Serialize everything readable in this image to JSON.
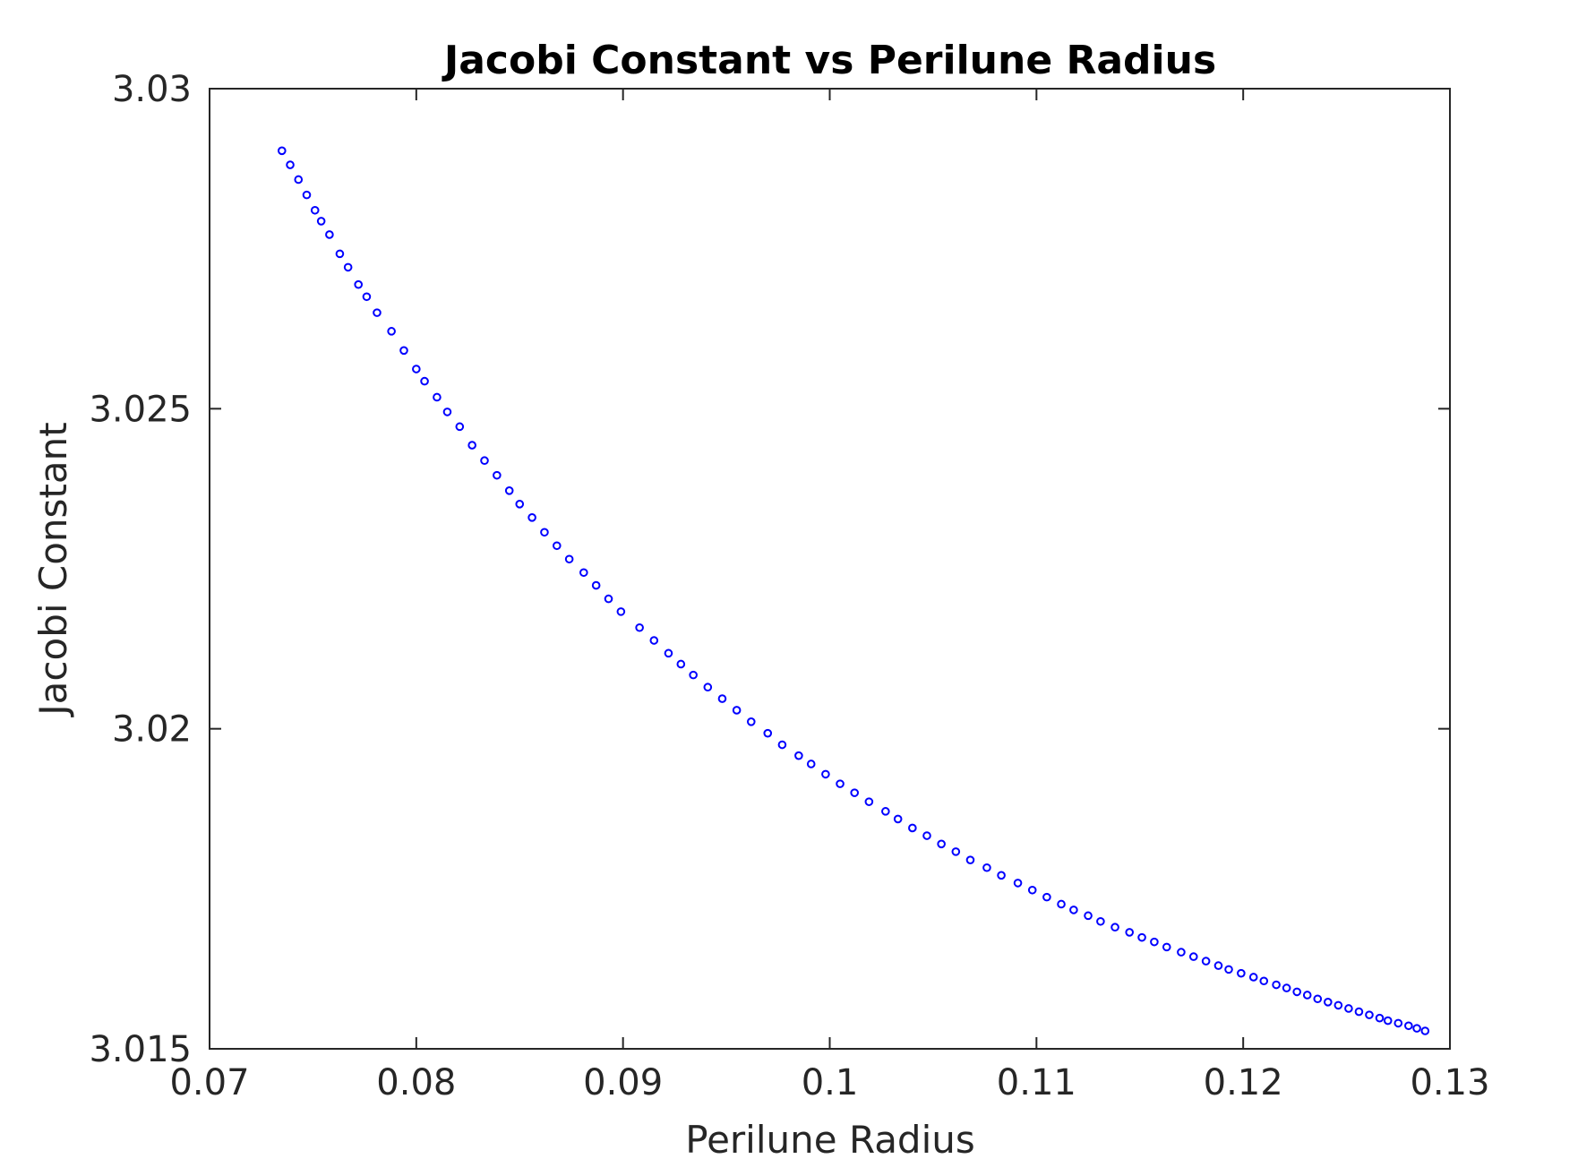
{
  "chart_data": {
    "type": "scatter",
    "title": "Jacobi Constant vs Perilune Radius",
    "xlabel": "Perilune Radius",
    "ylabel": "Jacobi Constant",
    "xlim": [
      0.07,
      0.13
    ],
    "ylim": [
      3.015,
      3.03
    ],
    "xticks": [
      0.07,
      0.08,
      0.09,
      0.1,
      0.11,
      0.12,
      0.13
    ],
    "xtick_labels": [
      "0.07",
      "0.08",
      "0.09",
      "0.1",
      "0.11",
      "0.12",
      "0.13"
    ],
    "yticks": [
      3.015,
      3.02,
      3.025,
      3.03
    ],
    "ytick_labels": [
      "3.015",
      "3.02",
      "3.025",
      "3.03"
    ],
    "grid": false,
    "marker": "circle-open",
    "marker_color": "#0000ff",
    "series": [
      {
        "x": [
          0.0735,
          0.0739,
          0.0743,
          0.0747,
          0.0751,
          0.0754,
          0.0758,
          0.0763,
          0.0767,
          0.0772,
          0.0776,
          0.0781,
          0.0788,
          0.0794,
          0.08,
          0.0804,
          0.081,
          0.0815,
          0.0821,
          0.0827,
          0.0833,
          0.0839,
          0.0845,
          0.085,
          0.0856,
          0.0862,
          0.0868,
          0.0874,
          0.0881,
          0.0887,
          0.0893,
          0.0899,
          0.0908,
          0.0915,
          0.0922,
          0.0928,
          0.0934,
          0.0941,
          0.0948,
          0.0955,
          0.0962,
          0.097,
          0.0977,
          0.0985,
          0.0991,
          0.0998,
          0.1005,
          0.1012,
          0.1019,
          0.1027,
          0.1033,
          0.104,
          0.1047,
          0.1054,
          0.1061,
          0.1068,
          0.1076,
          0.1083,
          0.1091,
          0.1098,
          0.1105,
          0.1112,
          0.1118,
          0.1125,
          0.1131,
          0.1138,
          0.1145,
          0.1151,
          0.1157,
          0.1163,
          0.117,
          0.1176,
          0.1182,
          0.1188,
          0.1193,
          0.1199,
          0.1205,
          0.121,
          0.1216,
          0.1221,
          0.1226,
          0.1231,
          0.1236,
          0.1241,
          0.1246,
          0.1251,
          0.1256,
          0.1261,
          0.1266,
          0.127,
          0.1275,
          0.128,
          0.1284,
          0.1288
        ],
        "y": [
          3.02903,
          3.02881,
          3.02858,
          3.02834,
          3.0281,
          3.02793,
          3.02772,
          3.02742,
          3.02721,
          3.02694,
          3.02675,
          3.0265,
          3.02621,
          3.02591,
          3.02562,
          3.02543,
          3.02518,
          3.02495,
          3.02472,
          3.02443,
          3.02419,
          3.02396,
          3.02372,
          3.02351,
          3.0233,
          3.02307,
          3.02286,
          3.02265,
          3.02244,
          3.02224,
          3.02203,
          3.02183,
          3.02158,
          3.02138,
          3.02118,
          3.02101,
          3.02084,
          3.02065,
          3.02047,
          3.02029,
          3.02011,
          3.01993,
          3.01975,
          3.01958,
          3.01945,
          3.01929,
          3.01914,
          3.019,
          3.01886,
          3.01871,
          3.01859,
          3.01845,
          3.01833,
          3.0182,
          3.01808,
          3.01795,
          3.01783,
          3.01771,
          3.01759,
          3.01748,
          3.01737,
          3.01726,
          3.01717,
          3.01708,
          3.01699,
          3.0169,
          3.01682,
          3.01674,
          3.01667,
          3.01659,
          3.01651,
          3.01644,
          3.01637,
          3.0163,
          3.01624,
          3.01618,
          3.01612,
          3.01606,
          3.016,
          3.01595,
          3.01589,
          3.01584,
          3.01578,
          3.01573,
          3.01568,
          3.01563,
          3.01558,
          3.01553,
          3.01548,
          3.01544,
          3.0154,
          3.01536,
          3.01532,
          3.01528
        ]
      }
    ]
  }
}
